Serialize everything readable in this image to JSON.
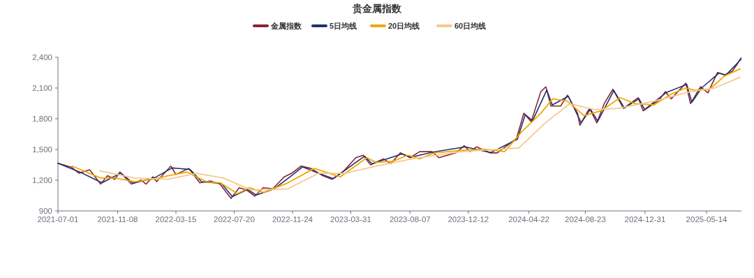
{
  "chart_data": {
    "type": "line",
    "title": "贵金属指数",
    "legend": "top",
    "grid": false,
    "marker": "none",
    "line_style": "solid",
    "xlim": [
      "2021-07-01",
      "2025-07-29"
    ],
    "xticks": [
      {
        "value": "2021-07-01",
        "label": "2021-07-01"
      },
      {
        "value": "2021-11-08",
        "label": "2021-11-08"
      },
      {
        "value": "2022-03-15",
        "label": "2022-03-15"
      },
      {
        "value": "2022-07-20",
        "label": "2022-07-20"
      },
      {
        "value": "2022-11-24",
        "label": "2022-11-24"
      },
      {
        "value": "2023-03-31",
        "label": "2023-03-31"
      },
      {
        "value": "2023-08-07",
        "label": "2023-08-07"
      },
      {
        "value": "2023-12-12",
        "label": "2023-12-12"
      },
      {
        "value": "2024-04-22",
        "label": "2024-04-22"
      },
      {
        "value": "2024-08-23",
        "label": "2024-08-23"
      },
      {
        "value": "2024-12-31",
        "label": "2024-12-31"
      },
      {
        "value": "2025-05-14",
        "label": "2025-05-14"
      }
    ],
    "ylim": [
      900,
      2400
    ],
    "yticks": [
      {
        "value": 900,
        "label": "900"
      },
      {
        "value": 1200,
        "label": "1,200"
      },
      {
        "value": 1500,
        "label": "1,500"
      },
      {
        "value": 1800,
        "label": "1,800"
      },
      {
        "value": 2100,
        "label": "2,100"
      },
      {
        "value": 2400,
        "label": "2,400"
      }
    ],
    "series": [
      {
        "name": "金属指数",
        "color": "#8b2335",
        "x": [
          "2021-07-01",
          "2021-07-31",
          "2021-08-16",
          "2021-09-08",
          "2021-10-02",
          "2021-10-17",
          "2021-11-02",
          "2021-11-13",
          "2021-12-08",
          "2021-12-29",
          "2022-01-09",
          "2022-01-24",
          "2022-02-01",
          "2022-03-04",
          "2022-03-15",
          "2022-04-12",
          "2022-05-06",
          "2022-05-29",
          "2022-06-19",
          "2022-07-13",
          "2022-07-31",
          "2022-08-16",
          "2022-09-03",
          "2022-09-21",
          "2022-10-12",
          "2022-11-06",
          "2022-11-22",
          "2022-12-13",
          "2023-01-03",
          "2023-01-29",
          "2023-02-18",
          "2023-03-16",
          "2023-04-11",
          "2023-04-27",
          "2023-05-13",
          "2023-06-10",
          "2023-06-26",
          "2023-07-17",
          "2023-08-07",
          "2023-08-28",
          "2023-09-24",
          "2023-10-09",
          "2023-11-15",
          "2023-12-03",
          "2023-12-16",
          "2023-12-30",
          "2024-01-28",
          "2024-02-13",
          "2024-03-05",
          "2024-03-26",
          "2024-04-11",
          "2024-04-27",
          "2024-05-18",
          "2024-05-29",
          "2024-06-09",
          "2024-06-30",
          "2024-07-15",
          "2024-08-06",
          "2024-08-11",
          "2024-09-01",
          "2024-09-17",
          "2024-10-03",
          "2024-10-22",
          "2024-11-14",
          "2024-12-16",
          "2024-12-27",
          "2025-01-31",
          "2025-02-13",
          "2025-02-26",
          "2025-03-30",
          "2025-04-09",
          "2025-05-01",
          "2025-05-17",
          "2025-06-07",
          "2025-06-23",
          "2025-07-09",
          "2025-07-20",
          "2025-07-28"
        ],
        "values": [
          1366,
          1326,
          1268,
          1303,
          1162,
          1244,
          1209,
          1280,
          1162,
          1202,
          1162,
          1233,
          1186,
          1338,
          1256,
          1315,
          1174,
          1193,
          1162,
          1022,
          1127,
          1104,
          1045,
          1127,
          1116,
          1233,
          1268,
          1338,
          1315,
          1244,
          1209,
          1291,
          1420,
          1444,
          1350,
          1409,
          1362,
          1467,
          1420,
          1479,
          1479,
          1420,
          1467,
          1537,
          1479,
          1526,
          1467,
          1467,
          1537,
          1608,
          1854,
          1772,
          2065,
          2112,
          1924,
          1924,
          2030,
          1854,
          1737,
          1901,
          1760,
          1947,
          2088,
          1901,
          2006,
          1877,
          1983,
          2065,
          1995,
          2147,
          1947,
          2112,
          2053,
          2252,
          2229,
          2264,
          2334,
          2393
        ]
      },
      {
        "name": "5日均线",
        "color": "#1f3468",
        "x": [
          "2021-07-01",
          "2021-08-20",
          "2021-10-05",
          "2021-11-15",
          "2021-12-12",
          "2022-01-28",
          "2022-03-07",
          "2022-04-15",
          "2022-05-10",
          "2022-06-22",
          "2022-07-16",
          "2022-08-18",
          "2022-09-06",
          "2022-10-15",
          "2022-11-25",
          "2022-12-16",
          "2023-01-31",
          "2023-02-21",
          "2023-04-30",
          "2023-05-16",
          "2023-07-20",
          "2023-08-10",
          "2023-09-26",
          "2023-12-05",
          "2024-01-30",
          "2024-03-28",
          "2024-04-14",
          "2024-04-30",
          "2024-05-31",
          "2024-06-12",
          "2024-07-17",
          "2024-08-14",
          "2024-09-03",
          "2024-09-19",
          "2024-10-24",
          "2024-11-16",
          "2024-12-18",
          "2024-12-30",
          "2025-02-15",
          "2025-04-01",
          "2025-04-12",
          "2025-05-03",
          "2025-06-10",
          "2025-06-25",
          "2025-07-28"
        ],
        "values": [
          1366,
          1275,
          1175,
          1270,
          1170,
          1225,
          1320,
          1305,
          1185,
          1170,
          1040,
          1110,
          1055,
          1115,
          1255,
          1330,
          1250,
          1215,
          1435,
          1360,
          1455,
          1425,
          1475,
          1525,
          1470,
          1600,
          1840,
          1780,
          2080,
          1935,
          2020,
          1760,
          1895,
          1775,
          2075,
          1905,
          1995,
          1890,
          2055,
          2135,
          1960,
          2100,
          2245,
          2225,
          2380
        ]
      },
      {
        "name": "20日均线",
        "color": "#f0a800",
        "x": [
          "2021-08-01",
          "2021-10-02",
          "2021-11-03",
          "2021-12-15",
          "2022-01-25",
          "2022-02-26",
          "2022-04-08",
          "2022-05-20",
          "2022-06-20",
          "2022-07-27",
          "2022-08-22",
          "2022-09-22",
          "2022-11-14",
          "2023-01-10",
          "2023-03-08",
          "2023-05-05",
          "2023-05-25",
          "2023-07-01",
          "2023-08-02",
          "2023-08-28",
          "2023-09-29",
          "2023-11-26",
          "2024-01-17",
          "2024-02-29",
          "2024-04-05",
          "2024-05-18",
          "2024-06-13",
          "2024-07-15",
          "2024-08-20",
          "2024-09-26",
          "2024-11-07",
          "2024-12-09",
          "2025-01-20",
          "2025-02-26",
          "2025-03-30",
          "2025-04-20",
          "2025-05-21",
          "2025-06-22",
          "2025-07-26"
        ],
        "values": [
          1338,
          1221,
          1221,
          1186,
          1209,
          1244,
          1280,
          1186,
          1174,
          1069,
          1127,
          1080,
          1174,
          1315,
          1233,
          1420,
          1373,
          1385,
          1444,
          1409,
          1467,
          1490,
          1502,
          1479,
          1666,
          1854,
          1995,
          1971,
          1830,
          1877,
          2006,
          1947,
          1936,
          2041,
          2100,
          2077,
          2088,
          2217,
          2287
        ]
      },
      {
        "name": "60日均线",
        "color": "#f5c98a",
        "x": [
          "2021-09-30",
          "2021-12-15",
          "2022-02-26",
          "2022-04-29",
          "2022-06-26",
          "2022-08-27",
          "2022-11-14",
          "2023-01-20",
          "2023-03-19",
          "2023-05-25",
          "2023-08-12",
          "2023-11-26",
          "2024-03-31",
          "2024-05-28",
          "2024-07-20",
          "2024-09-11",
          "2024-11-02",
          "2025-01-20",
          "2025-04-09",
          "2025-06-01",
          "2025-07-26"
        ],
        "values": [
          1291,
          1221,
          1209,
          1268,
          1221,
          1104,
          1116,
          1268,
          1268,
          1338,
          1409,
          1479,
          1514,
          1760,
          1947,
          1889,
          1901,
          1971,
          2065,
          2100,
          2205
        ]
      }
    ]
  }
}
